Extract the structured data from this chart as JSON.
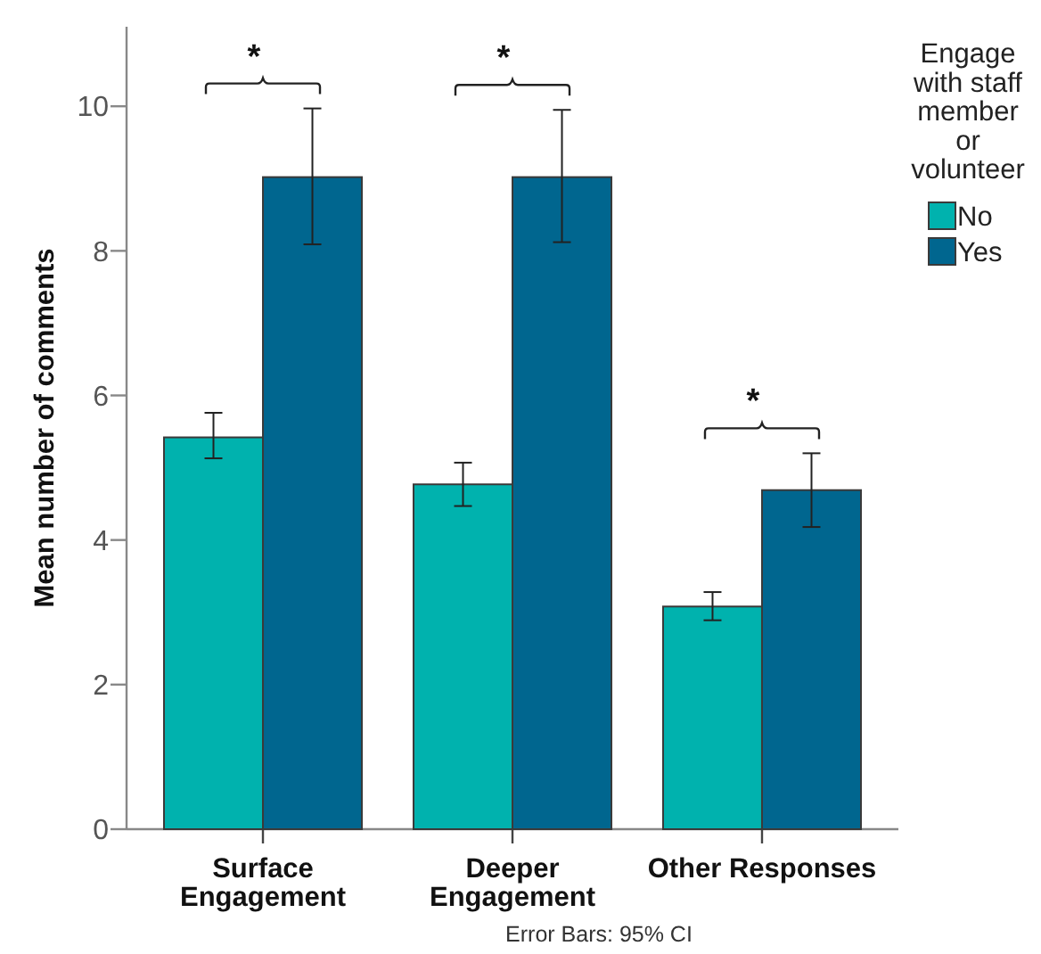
{
  "chart_data": {
    "type": "bar",
    "ylabel": "Mean number of comments",
    "legend_title": "Engage with staff member or volunteer",
    "legend": "top right",
    "categories": [
      "Surface Engagement",
      "Deeper Engagement",
      "Other Responses"
    ],
    "series": [
      {
        "name": "No",
        "color": "#00b2ae",
        "values": [
          5.42,
          4.77,
          3.08
        ],
        "errors": [
          [
            5.13,
            5.76
          ],
          [
            4.47,
            5.07
          ],
          [
            2.89,
            3.28
          ]
        ]
      },
      {
        "name": "Yes",
        "color": "#00668f",
        "values": [
          9.02,
          9.02,
          4.69
        ],
        "errors": [
          [
            8.09,
            9.97
          ],
          [
            8.12,
            9.95
          ],
          [
            4.18,
            5.2
          ]
        ]
      }
    ],
    "ylim": [
      0,
      11.1
    ],
    "yticks": [
      0,
      2,
      4,
      6,
      8,
      10
    ],
    "annotations": [
      "*",
      "*",
      "*",
      "Error Bars: 95% CI"
    ]
  }
}
